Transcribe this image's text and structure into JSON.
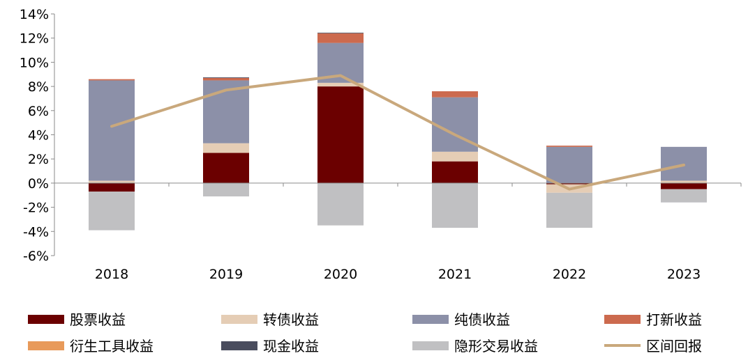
{
  "chart_data": {
    "type": "bar",
    "stacked": true,
    "categories": [
      "2018",
      "2019",
      "2020",
      "2021",
      "2022",
      "2023"
    ],
    "ylim": [
      -6,
      14
    ],
    "yticks": [
      14,
      12,
      10,
      8,
      6,
      4,
      2,
      0,
      -2,
      -4,
      -6
    ],
    "ytick_labels": [
      "14%",
      "12%",
      "10%",
      "8%",
      "6%",
      "4%",
      "2%",
      "0%",
      "-2%",
      "-4%",
      "-6%"
    ],
    "y_unit": "%",
    "grid": false,
    "legend_position": "bottom",
    "series": [
      {
        "name": "股票收益",
        "type": "bar",
        "color": "#6B0000",
        "values": [
          -0.7,
          2.5,
          8.0,
          1.8,
          -0.1,
          -0.5
        ]
      },
      {
        "name": "转债收益",
        "type": "bar",
        "color": "#E5CDB5",
        "values": [
          0.2,
          0.8,
          0.3,
          0.8,
          -0.7,
          0.2
        ]
      },
      {
        "name": "纯债收益",
        "type": "bar",
        "color": "#8C90A8",
        "values": [
          8.3,
          5.2,
          3.3,
          4.5,
          3.0,
          2.8
        ]
      },
      {
        "name": "打新收益",
        "type": "bar",
        "color": "#CC6A4E",
        "values": [
          0.1,
          0.2,
          0.8,
          0.5,
          0.1,
          0.0
        ]
      },
      {
        "name": "衍生工具收益",
        "type": "bar",
        "color": "#E89A5A",
        "values": [
          0.0,
          0.0,
          0.0,
          0.0,
          0.0,
          0.0
        ]
      },
      {
        "name": "现金收益",
        "type": "bar",
        "color": "#4A4D5E",
        "values": [
          0.0,
          0.05,
          0.05,
          0.0,
          0.0,
          0.0
        ]
      },
      {
        "name": "隐形交易收益",
        "type": "bar",
        "color": "#C0C0C2",
        "values": [
          -3.2,
          -1.1,
          -3.5,
          -3.7,
          -2.9,
          -1.1
        ]
      },
      {
        "name": "区间回报",
        "type": "line",
        "color": "#C9A87C",
        "values": [
          4.7,
          7.7,
          8.9,
          4.0,
          -0.5,
          1.5
        ]
      }
    ]
  }
}
